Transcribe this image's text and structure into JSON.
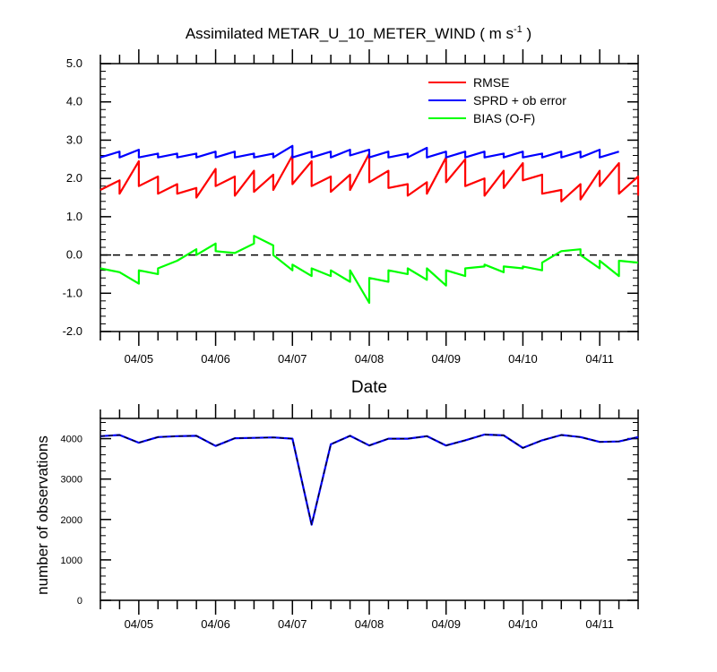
{
  "chart_data": [
    {
      "type": "line",
      "title": "Assimilated METAR_U_10_METER_WIND ( m s",
      "title_unit_sup": "-1",
      "title_close": " )",
      "xlabel": "Date",
      "ylabel": "",
      "ylim": [
        -2.0,
        5.0
      ],
      "yticks": [
        "-2.0",
        "-1.0",
        "0.0",
        "1.0",
        "2.0",
        "3.0",
        "4.0",
        "5.0"
      ],
      "xticks": [
        "04/05",
        "04/06",
        "04/07",
        "04/08",
        "04/09",
        "04/10",
        "04/11"
      ],
      "xlim_days": [
        4.0,
        11.0
      ],
      "reference_line": 0.0,
      "legend_placement": "top-right",
      "series": [
        {
          "name": "RMSE",
          "color": "#ff0000",
          "points": [
            [
              4.0,
              1.7
            ],
            [
              4.25,
              1.95
            ],
            [
              4.25,
              1.6
            ],
            [
              4.5,
              2.45
            ],
            [
              4.5,
              1.8
            ],
            [
              4.75,
              2.05
            ],
            [
              4.75,
              1.6
            ],
            [
              5.0,
              1.85
            ],
            [
              5.0,
              1.6
            ],
            [
              5.25,
              1.75
            ],
            [
              5.25,
              1.5
            ],
            [
              5.5,
              2.25
            ],
            [
              5.5,
              1.8
            ],
            [
              5.75,
              2.05
            ],
            [
              5.75,
              1.55
            ],
            [
              6.0,
              2.2
            ],
            [
              6.0,
              1.65
            ],
            [
              6.25,
              2.1
            ],
            [
              6.25,
              1.7
            ],
            [
              6.5,
              2.6
            ],
            [
              6.5,
              1.85
            ],
            [
              6.75,
              2.45
            ],
            [
              6.75,
              1.8
            ],
            [
              7.0,
              2.05
            ],
            [
              7.0,
              1.65
            ],
            [
              7.25,
              2.1
            ],
            [
              7.25,
              1.7
            ],
            [
              7.5,
              2.65
            ],
            [
              7.5,
              1.9
            ],
            [
              7.75,
              2.2
            ],
            [
              7.75,
              1.75
            ],
            [
              8.0,
              1.85
            ],
            [
              8.0,
              1.55
            ],
            [
              8.25,
              1.9
            ],
            [
              8.25,
              1.6
            ],
            [
              8.5,
              2.55
            ],
            [
              8.5,
              1.9
            ],
            [
              8.75,
              2.5
            ],
            [
              8.75,
              1.8
            ],
            [
              9.0,
              2.0
            ],
            [
              9.0,
              1.55
            ],
            [
              9.25,
              2.2
            ],
            [
              9.25,
              1.75
            ],
            [
              9.5,
              2.4
            ],
            [
              9.5,
              1.95
            ],
            [
              9.75,
              2.1
            ],
            [
              9.75,
              1.6
            ],
            [
              10.0,
              1.7
            ],
            [
              10.0,
              1.4
            ],
            [
              10.25,
              1.85
            ],
            [
              10.25,
              1.45
            ],
            [
              10.5,
              2.2
            ],
            [
              10.5,
              1.8
            ],
            [
              10.75,
              2.4
            ],
            [
              10.75,
              1.6
            ],
            [
              11.0,
              2.05
            ],
            [
              11.0,
              1.55
            ]
          ]
        },
        {
          "name": "SPRD + ob error",
          "color": "#0000ff",
          "points": [
            [
              4.0,
              2.55
            ],
            [
              4.25,
              2.7
            ],
            [
              4.25,
              2.55
            ],
            [
              4.5,
              2.75
            ],
            [
              4.5,
              2.55
            ],
            [
              4.75,
              2.65
            ],
            [
              4.75,
              2.55
            ],
            [
              5.0,
              2.65
            ],
            [
              5.0,
              2.55
            ],
            [
              5.25,
              2.65
            ],
            [
              5.25,
              2.55
            ],
            [
              5.5,
              2.7
            ],
            [
              5.5,
              2.55
            ],
            [
              5.75,
              2.7
            ],
            [
              5.75,
              2.55
            ],
            [
              6.0,
              2.65
            ],
            [
              6.0,
              2.55
            ],
            [
              6.25,
              2.65
            ],
            [
              6.25,
              2.55
            ],
            [
              6.5,
              2.85
            ],
            [
              6.5,
              2.55
            ],
            [
              6.75,
              2.7
            ],
            [
              6.75,
              2.55
            ],
            [
              7.0,
              2.7
            ],
            [
              7.0,
              2.55
            ],
            [
              7.25,
              2.75
            ],
            [
              7.25,
              2.6
            ],
            [
              7.5,
              2.75
            ],
            [
              7.5,
              2.55
            ],
            [
              7.75,
              2.7
            ],
            [
              7.75,
              2.55
            ],
            [
              8.0,
              2.65
            ],
            [
              8.0,
              2.55
            ],
            [
              8.25,
              2.8
            ],
            [
              8.25,
              2.55
            ],
            [
              8.5,
              2.7
            ],
            [
              8.5,
              2.55
            ],
            [
              8.75,
              2.7
            ],
            [
              8.75,
              2.55
            ],
            [
              9.0,
              2.7
            ],
            [
              9.0,
              2.55
            ],
            [
              9.25,
              2.65
            ],
            [
              9.25,
              2.55
            ],
            [
              9.5,
              2.7
            ],
            [
              9.5,
              2.55
            ],
            [
              9.75,
              2.65
            ],
            [
              9.75,
              2.55
            ],
            [
              10.0,
              2.7
            ],
            [
              10.0,
              2.55
            ],
            [
              10.25,
              2.7
            ],
            [
              10.25,
              2.55
            ],
            [
              10.5,
              2.75
            ],
            [
              10.5,
              2.55
            ],
            [
              10.75,
              2.7
            ]
          ]
        },
        {
          "name": "BIAS (O-F)",
          "color": "#00ff00",
          "points": [
            [
              4.0,
              -0.35
            ],
            [
              4.25,
              -0.45
            ],
            [
              4.5,
              -0.75
            ],
            [
              4.5,
              -0.4
            ],
            [
              4.75,
              -0.5
            ],
            [
              4.75,
              -0.35
            ],
            [
              5.0,
              -0.15
            ],
            [
              5.25,
              0.15
            ],
            [
              5.25,
              0.0
            ],
            [
              5.5,
              0.3
            ],
            [
              5.5,
              0.1
            ],
            [
              5.75,
              0.05
            ],
            [
              6.0,
              0.3
            ],
            [
              6.0,
              0.5
            ],
            [
              6.25,
              0.25
            ],
            [
              6.25,
              0.0
            ],
            [
              6.5,
              -0.4
            ],
            [
              6.5,
              -0.25
            ],
            [
              6.75,
              -0.55
            ],
            [
              6.75,
              -0.35
            ],
            [
              7.0,
              -0.55
            ],
            [
              7.0,
              -0.4
            ],
            [
              7.25,
              -0.7
            ],
            [
              7.25,
              -0.4
            ],
            [
              7.5,
              -1.25
            ],
            [
              7.5,
              -0.6
            ],
            [
              7.75,
              -0.7
            ],
            [
              7.75,
              -0.4
            ],
            [
              8.0,
              -0.5
            ],
            [
              8.0,
              -0.35
            ],
            [
              8.25,
              -0.65
            ],
            [
              8.25,
              -0.35
            ],
            [
              8.5,
              -0.8
            ],
            [
              8.5,
              -0.4
            ],
            [
              8.75,
              -0.55
            ],
            [
              8.75,
              -0.35
            ],
            [
              9.0,
              -0.3
            ],
            [
              9.0,
              -0.25
            ],
            [
              9.25,
              -0.45
            ],
            [
              9.25,
              -0.3
            ],
            [
              9.5,
              -0.35
            ],
            [
              9.5,
              -0.3
            ],
            [
              9.75,
              -0.4
            ],
            [
              9.75,
              -0.2
            ],
            [
              10.0,
              0.1
            ],
            [
              10.25,
              0.15
            ],
            [
              10.25,
              0.0
            ],
            [
              10.5,
              -0.35
            ],
            [
              10.5,
              -0.15
            ],
            [
              10.75,
              -0.55
            ],
            [
              10.75,
              -0.15
            ],
            [
              11.0,
              -0.2
            ]
          ]
        }
      ]
    },
    {
      "type": "line",
      "title": "",
      "xlabel": "",
      "ylabel": "number of observations",
      "ylim": [
        0,
        4500
      ],
      "yticks": [
        "0",
        "1000",
        "2000",
        "3000",
        "4000"
      ],
      "xticks": [
        "04/05",
        "04/06",
        "04/07",
        "04/08",
        "04/09",
        "04/10",
        "04/11"
      ],
      "xlim_days": [
        4.0,
        11.0
      ],
      "series": [
        {
          "name": "",
          "color": "#0000ff",
          "points": [
            [
              4.0,
              4060
            ],
            [
              4.25,
              4090
            ],
            [
              4.5,
              3900
            ],
            [
              4.75,
              4040
            ],
            [
              5.0,
              4060
            ],
            [
              5.25,
              4070
            ],
            [
              5.5,
              3820
            ],
            [
              5.75,
              4010
            ],
            [
              6.0,
              4020
            ],
            [
              6.25,
              4030
            ],
            [
              6.5,
              4000
            ],
            [
              6.75,
              1870
            ],
            [
              7.0,
              3860
            ],
            [
              7.25,
              4070
            ],
            [
              7.5,
              3830
            ],
            [
              7.75,
              4000
            ],
            [
              8.0,
              4000
            ],
            [
              8.25,
              4060
            ],
            [
              8.5,
              3830
            ],
            [
              8.75,
              3960
            ],
            [
              9.0,
              4100
            ],
            [
              9.25,
              4080
            ],
            [
              9.5,
              3770
            ],
            [
              9.75,
              3960
            ],
            [
              10.0,
              4090
            ],
            [
              10.25,
              4040
            ],
            [
              10.5,
              3920
            ],
            [
              10.75,
              3930
            ],
            [
              11.0,
              4040
            ]
          ]
        }
      ]
    }
  ]
}
